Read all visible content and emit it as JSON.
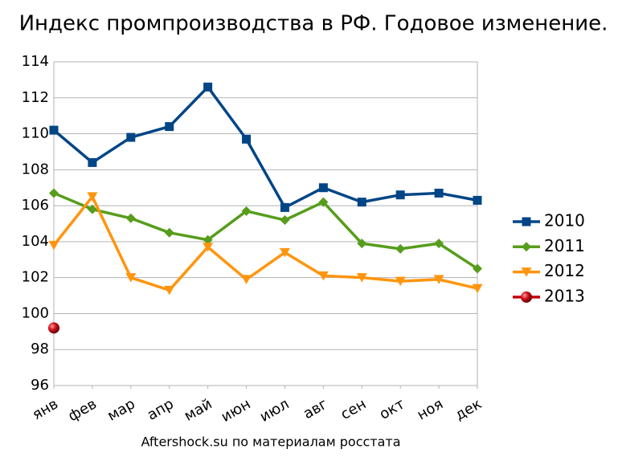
{
  "chart_data": {
    "type": "line",
    "title": "Индекс промпроизводства в РФ. Годовое изменение.",
    "source": "Aftershock.su по материалам росстата",
    "categories": [
      "янв",
      "фев",
      "мар",
      "апр",
      "май",
      "июн",
      "июл",
      "авг",
      "сен",
      "окт",
      "ноя",
      "дек"
    ],
    "series": [
      {
        "name": "2010",
        "color": "#004586",
        "marker": "square",
        "values": [
          110.2,
          108.4,
          109.8,
          110.4,
          112.6,
          109.7,
          105.9,
          107.0,
          106.2,
          106.6,
          106.7,
          106.3
        ]
      },
      {
        "name": "2011",
        "color": "#579d1c",
        "marker": "diamond",
        "values": [
          106.7,
          105.8,
          105.3,
          104.5,
          104.1,
          105.7,
          105.2,
          106.2,
          103.9,
          103.6,
          103.9,
          102.5
        ]
      },
      {
        "name": "2012",
        "color": "#ff950e",
        "marker": "triangle-down",
        "values": [
          103.8,
          106.5,
          102.0,
          101.3,
          103.7,
          101.9,
          103.4,
          102.1,
          102.0,
          101.8,
          101.9,
          101.4
        ]
      },
      {
        "name": "2013",
        "color": "#c5000b",
        "marker": "circle",
        "values": [
          99.2,
          null,
          null,
          null,
          null,
          null,
          null,
          null,
          null,
          null,
          null,
          null
        ]
      }
    ],
    "ylim": [
      96,
      114
    ],
    "yticks": [
      96,
      98,
      100,
      102,
      104,
      106,
      108,
      110,
      112,
      114
    ],
    "grid": true,
    "legend": "right"
  }
}
